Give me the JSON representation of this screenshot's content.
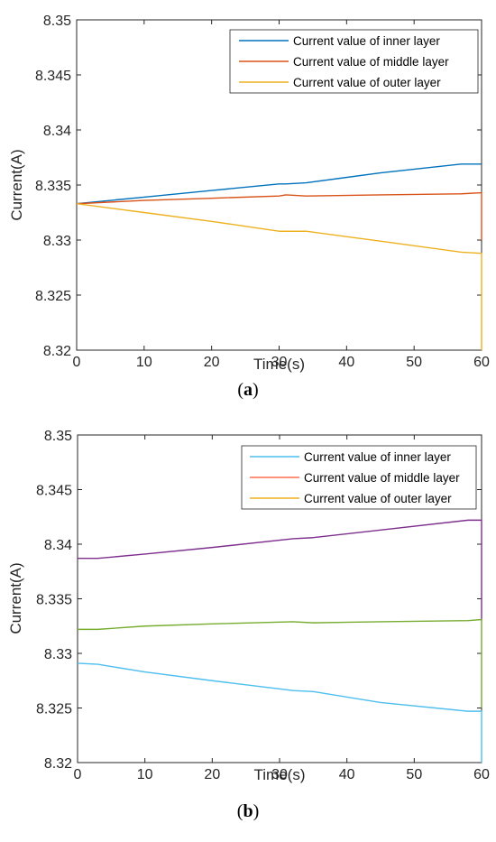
{
  "chart_data": [
    {
      "type": "line",
      "panel_label": "a",
      "xlabel": "Time(s)",
      "ylabel": "Current(A)",
      "xlim": [
        0,
        60
      ],
      "ylim": [
        8.32,
        8.35
      ],
      "xticks": [
        "0",
        "10",
        "20",
        "30",
        "40",
        "50",
        "60"
      ],
      "yticks": [
        "8.32",
        "8.325",
        "8.33",
        "8.335",
        "8.34",
        "8.345",
        "8.35"
      ],
      "grid": false,
      "legend_position": "top-right",
      "series": [
        {
          "name": "Current value of inner layer",
          "color": "#0072BD",
          "x": [
            0,
            10,
            20,
            30,
            31,
            34,
            45,
            57,
            60,
            60
          ],
          "y": [
            8.3333,
            8.3339,
            8.3345,
            8.3351,
            8.3351,
            8.3352,
            8.3361,
            8.3369,
            8.3369,
            8.3369
          ]
        },
        {
          "name": "Current value of middle layer",
          "color": "#D95319",
          "x": [
            0,
            10,
            20,
            30,
            31,
            34,
            45,
            57,
            60,
            60
          ],
          "y": [
            8.3333,
            8.3336,
            8.3338,
            8.334,
            8.3341,
            8.334,
            8.3341,
            8.3342,
            8.3343,
            8.33
          ]
        },
        {
          "name": "Current value of outer layer",
          "color": "#EDB120",
          "x": [
            0,
            10,
            20,
            30,
            31,
            34,
            45,
            57,
            60,
            60
          ],
          "y": [
            8.3333,
            8.3325,
            8.3317,
            8.3308,
            8.3308,
            8.3308,
            8.3299,
            8.3289,
            8.3288,
            8.32
          ]
        }
      ]
    },
    {
      "type": "line",
      "panel_label": "b",
      "xlabel": "Time(s)",
      "ylabel": "Current(A)",
      "xlim": [
        0,
        60
      ],
      "ylim": [
        8.32,
        8.35
      ],
      "xticks": [
        "0",
        "10",
        "20",
        "30",
        "40",
        "50",
        "60"
      ],
      "yticks": [
        "8.32",
        "8.325",
        "8.33",
        "8.335",
        "8.34",
        "8.345",
        "8.35"
      ],
      "grid": false,
      "legend_position": "top-right",
      "legend": [
        {
          "name": "Current value of inner layer",
          "color": "#4DBEEE"
        },
        {
          "name": "Current value of middle layer",
          "color": "#FF6F4F"
        },
        {
          "name": "Current value of outer layer",
          "color": "#EDB120"
        }
      ],
      "series": [
        {
          "color": "#7E2F8E",
          "x": [
            0,
            3,
            10,
            20,
            32,
            35,
            45,
            58,
            60,
            60
          ],
          "y": [
            8.3387,
            8.3387,
            8.3391,
            8.3397,
            8.3405,
            8.3406,
            8.3413,
            8.3422,
            8.3422,
            8.333
          ]
        },
        {
          "color": "#77AC30",
          "x": [
            0,
            3,
            10,
            20,
            32,
            35,
            45,
            58,
            60,
            60
          ],
          "y": [
            8.3322,
            8.3322,
            8.3325,
            8.3327,
            8.3329,
            8.3328,
            8.3329,
            8.333,
            8.3331,
            8.325
          ]
        },
        {
          "color": "#4DBEEE",
          "x": [
            0,
            3,
            10,
            20,
            32,
            35,
            45,
            58,
            60,
            60
          ],
          "y": [
            8.3291,
            8.329,
            8.3283,
            8.3275,
            8.3266,
            8.3265,
            8.3255,
            8.3247,
            8.3247,
            8.32
          ]
        }
      ]
    }
  ]
}
